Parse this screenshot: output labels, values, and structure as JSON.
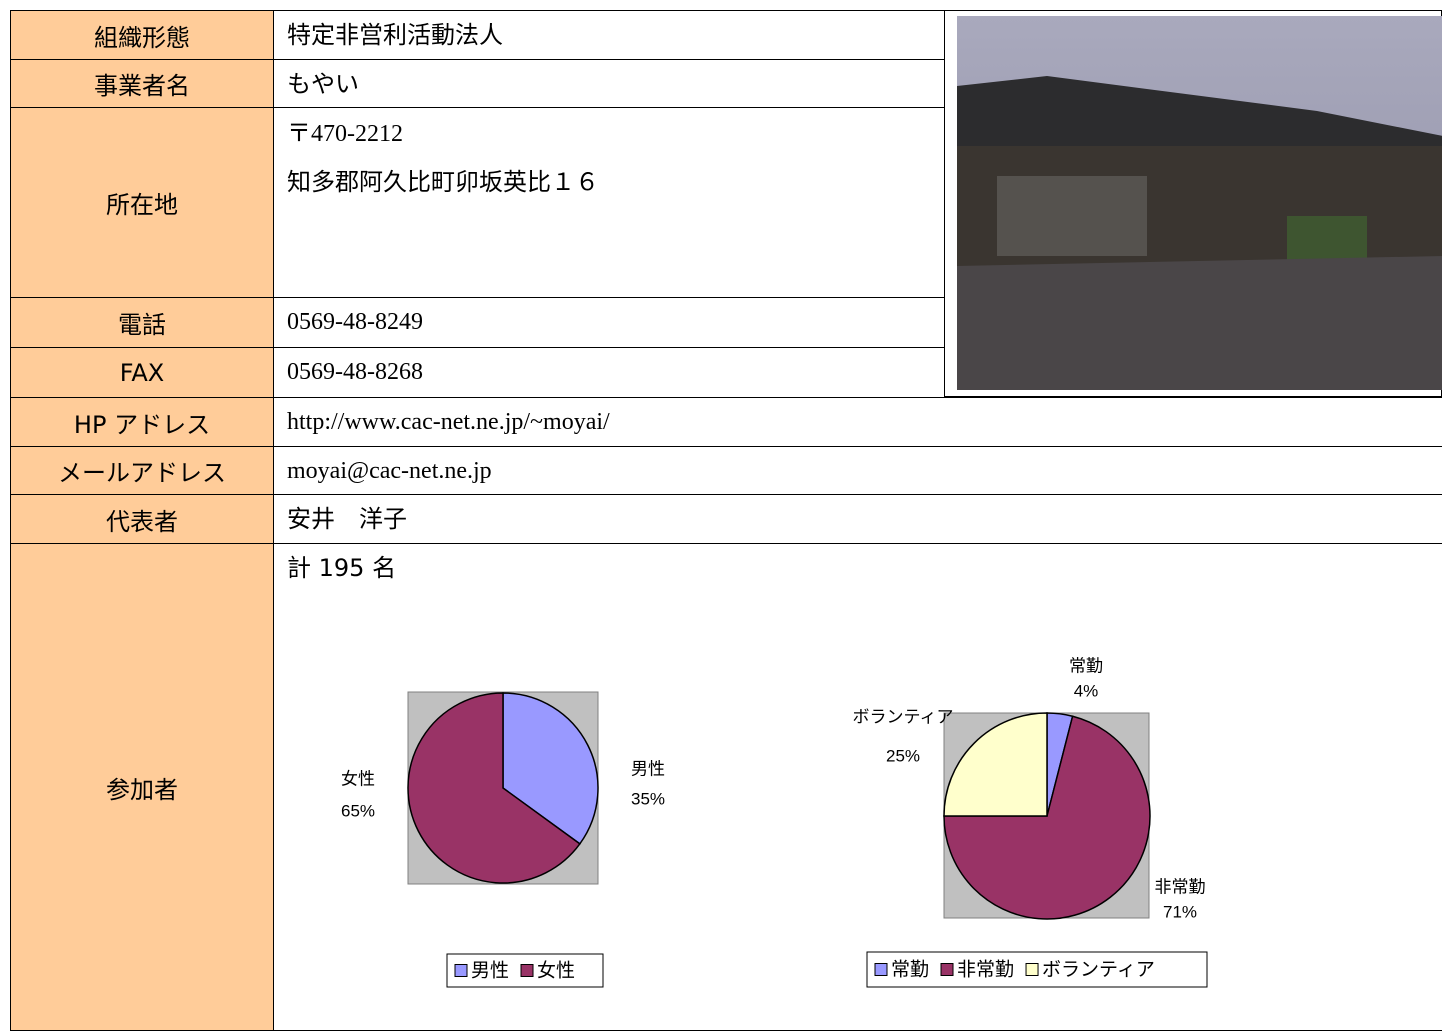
{
  "rows": [
    {
      "label": "組織形態",
      "lines": [
        "特定非営利活動法人"
      ]
    },
    {
      "label": "事業者名",
      "lines": [
        "もやい"
      ]
    },
    {
      "label": "所在地",
      "lines": [
        "〒470-2212",
        "知多郡阿久比町卯坂英比１６"
      ]
    },
    {
      "label": "電話",
      "lines": [
        "0569-48-8249"
      ]
    },
    {
      "label": "FAX",
      "lines": [
        "0569-48-8268"
      ]
    },
    {
      "label": "HP アドレス",
      "lines": [
        "http://www.cac-net.ne.jp/~moyai/"
      ]
    },
    {
      "label": "メールアドレス",
      "lines": [
        "moyai@cac-net.ne.jp"
      ]
    },
    {
      "label": "代表者",
      "lines": [
        "安井　洋子"
      ]
    },
    {
      "label": "参加者",
      "lines": [
        "計 195 名"
      ]
    }
  ],
  "charts": [
    {
      "type": "pie",
      "categories": [
        "男性",
        "女性"
      ],
      "values": [
        35,
        65
      ],
      "value_labels": [
        "35%",
        "65%"
      ],
      "colors": [
        "#9999FF",
        "#993366"
      ]
    },
    {
      "type": "pie",
      "categories": [
        "常勤",
        "非常勤",
        "ボランティア"
      ],
      "values": [
        4,
        71,
        25
      ],
      "value_labels": [
        "4%",
        "71%",
        "25%"
      ],
      "colors": [
        "#9999FF",
        "#993366",
        "#FFFFCC"
      ]
    }
  ]
}
